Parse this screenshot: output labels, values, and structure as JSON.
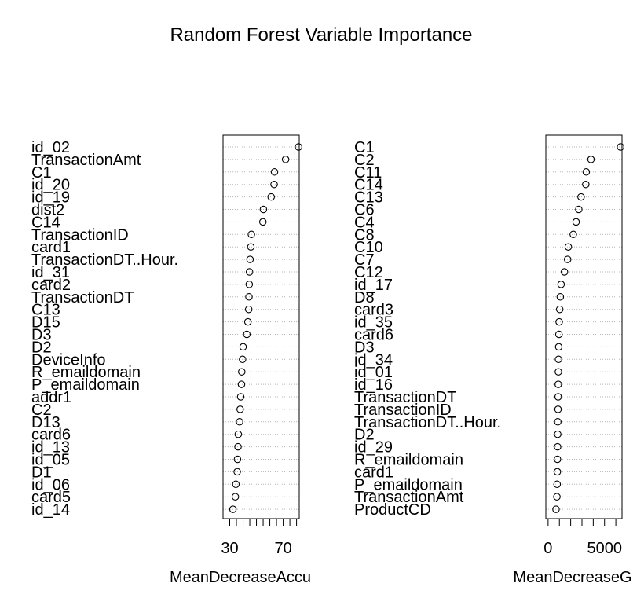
{
  "title": "Random Forest Variable Importance",
  "chart_data": [
    {
      "type": "scatter",
      "variant": "dotchart",
      "xlabel": "MeanDecreaseAccuracy",
      "xlabel_visible": "MeanDecreaseAccu",
      "xlim": [
        25,
        82
      ],
      "xtick_values": [
        30,
        35,
        40,
        45,
        50,
        55,
        60,
        65,
        70,
        75,
        80
      ],
      "xtick_labels": [
        {
          "value": 30,
          "label": "30"
        },
        {
          "value": 70,
          "label": "70"
        }
      ],
      "grid": true,
      "categories": [
        "id_02",
        "TransactionAmt",
        "C1",
        "id_20",
        "id_19",
        "dist2",
        "C14",
        "TransactionID",
        "card1",
        "TransactionDT..Hour.",
        "id_31",
        "card2",
        "TransactionDT",
        "C13",
        "D15",
        "D3",
        "D2",
        "DeviceInfo",
        "R_emaildomain",
        "P_emaildomain",
        "addr1",
        "C2",
        "D13",
        "card6",
        "id_13",
        "id_05",
        "D1",
        "id_06",
        "card5",
        "id_14"
      ],
      "values": [
        81.5,
        71.8,
        63.5,
        63.2,
        61.0,
        55.2,
        54.8,
        46.2,
        45.8,
        45.2,
        44.8,
        44.6,
        44.4,
        44.2,
        43.6,
        42.8,
        40.0,
        39.6,
        39.0,
        38.8,
        38.2,
        37.8,
        37.4,
        36.4,
        36.2,
        35.8,
        35.6,
        34.6,
        34.2,
        32.4
      ]
    },
    {
      "type": "scatter",
      "variant": "dotchart",
      "xlabel": "MeanDecreaseGini",
      "xlabel_visible": "MeanDecreaseG",
      "xlim": [
        -200,
        6550
      ],
      "xtick_values": [
        0,
        1000,
        2000,
        3000,
        4000,
        5000,
        6000
      ],
      "xtick_labels": [
        {
          "value": 0,
          "label": "0"
        },
        {
          "value": 5000,
          "label": "5000"
        }
      ],
      "grid": true,
      "categories": [
        "C1",
        "C2",
        "C11",
        "C14",
        "C13",
        "C6",
        "C4",
        "C8",
        "C10",
        "C7",
        "C12",
        "id_17",
        "D8",
        "card3",
        "id_35",
        "card6",
        "D3",
        "id_34",
        "id_01",
        "id_16",
        "TransactionDT",
        "TransactionID",
        "TransactionDT..Hour.",
        "D2",
        "id_29",
        "R_emaildomain",
        "card1",
        "P_emaildomain",
        "TransactionAmt",
        "ProductCD"
      ],
      "values": [
        6420,
        3800,
        3380,
        3340,
        2920,
        2720,
        2480,
        2230,
        1790,
        1730,
        1450,
        1150,
        1080,
        1030,
        980,
        960,
        940,
        920,
        910,
        900,
        890,
        880,
        860,
        850,
        840,
        830,
        820,
        800,
        780,
        700
      ]
    }
  ]
}
